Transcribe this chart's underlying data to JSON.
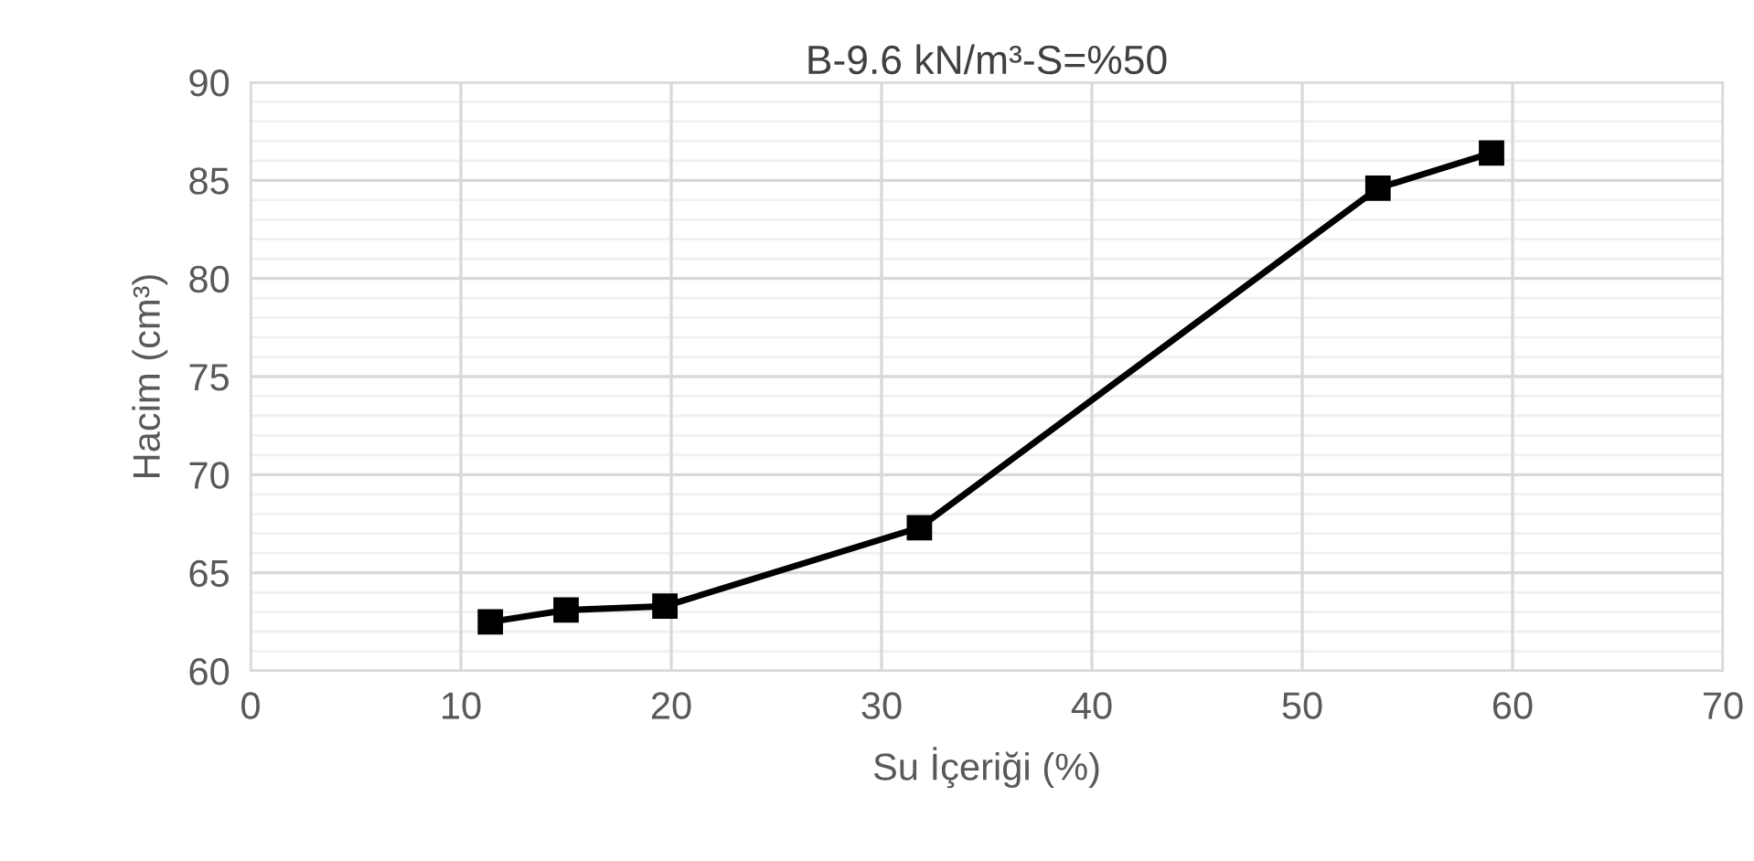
{
  "chart_data": {
    "type": "line",
    "title": "B-9.6 kN/m³-S=%50",
    "xlabel": "Su İçeriği (%)",
    "ylabel": "Hacim (cm³)",
    "x": [
      11.4,
      15.0,
      19.7,
      31.8,
      53.6,
      59.0
    ],
    "series": [
      {
        "color": "#000000",
        "values": [
          62.5,
          63.1,
          63.3,
          67.3,
          84.6,
          86.4
        ]
      }
    ],
    "xlim": [
      0,
      70
    ],
    "xticks": [
      0,
      10,
      20,
      30,
      40,
      50,
      60,
      70
    ],
    "ylim": [
      60,
      90
    ],
    "yticks": [
      60,
      65,
      70,
      75,
      80,
      85,
      90
    ],
    "grid": true,
    "marker": "square",
    "line_style": "solid",
    "legend": false
  }
}
